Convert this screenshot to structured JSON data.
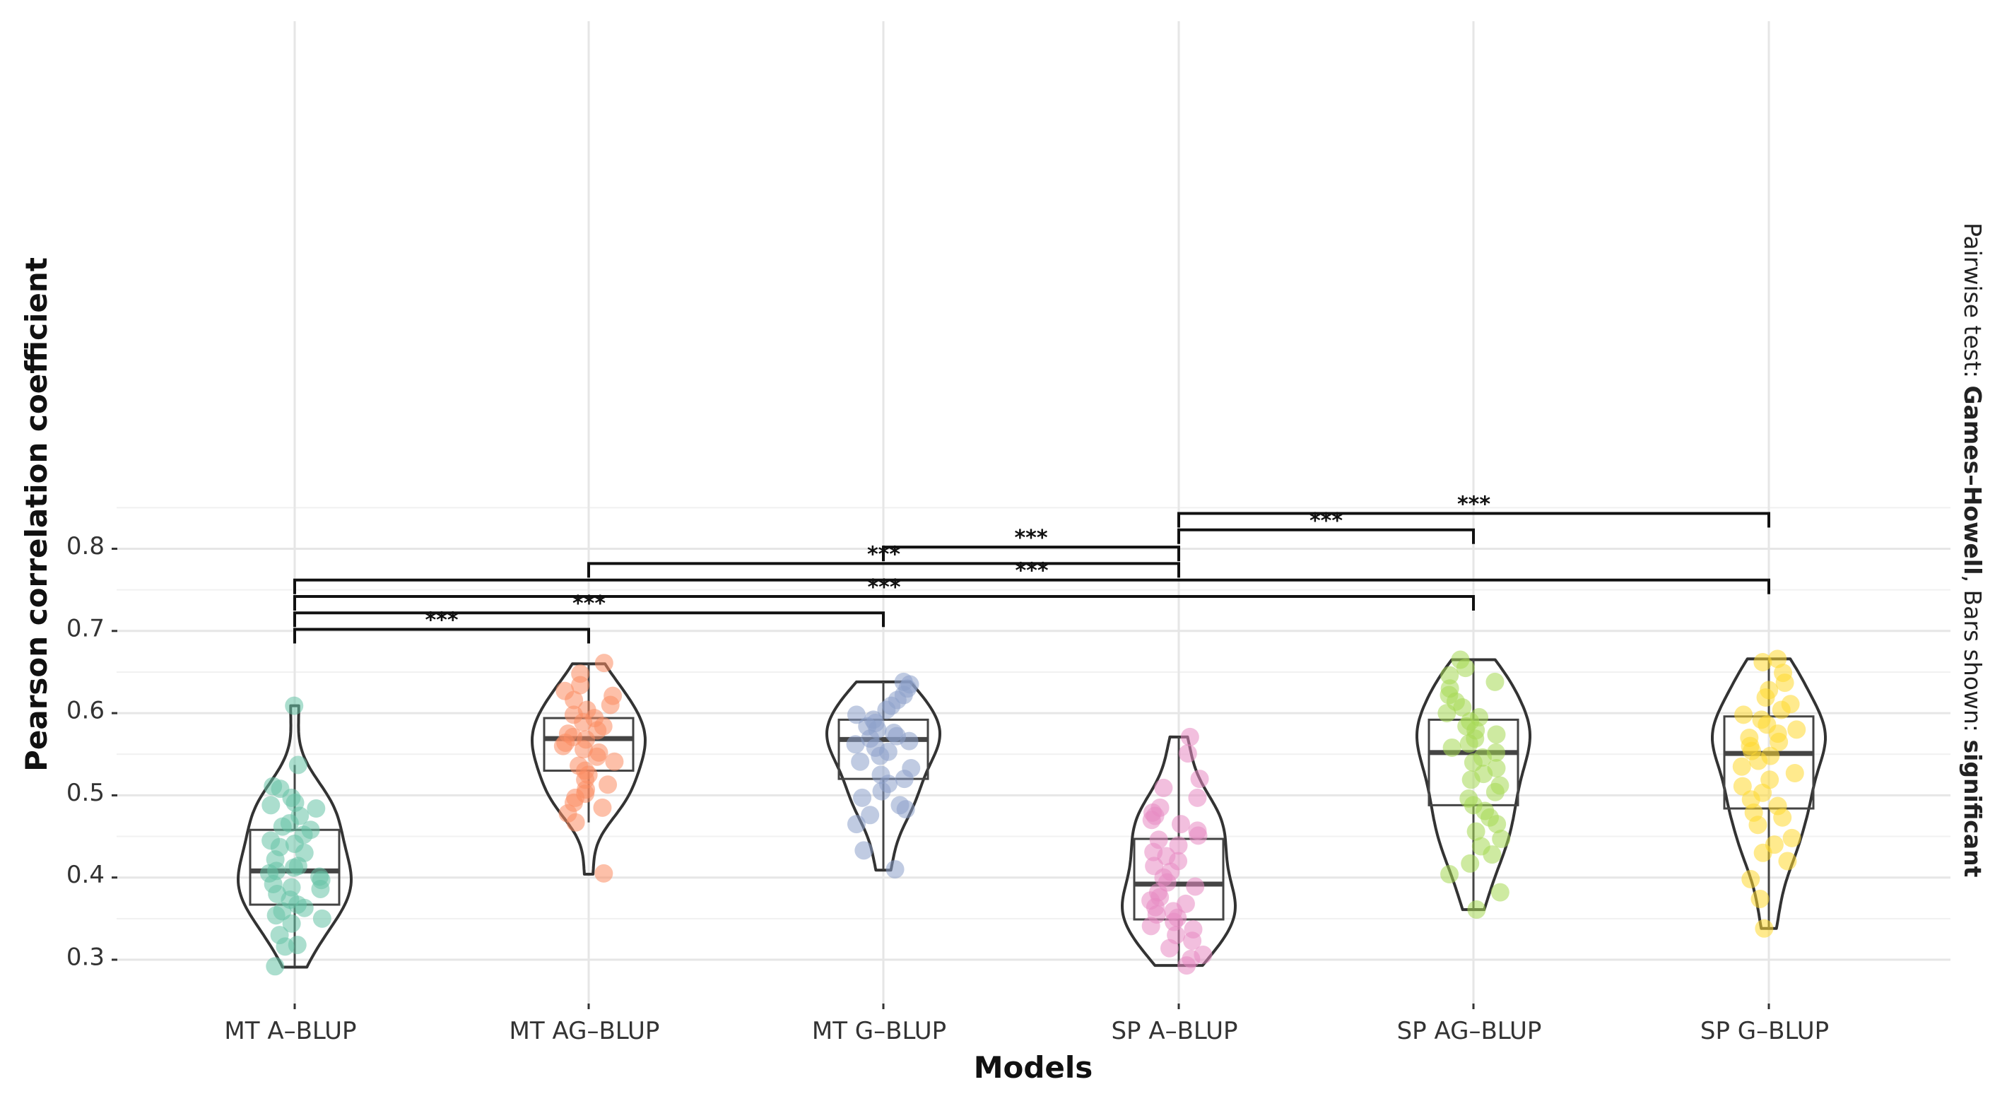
{
  "chart_data": {
    "type": "violin-box-jitter",
    "xlabel": "Models",
    "ylabel": "Pearson correlation coefficient",
    "ylim": [
      0.285,
      0.855
    ],
    "yticks": [
      0.3,
      0.4,
      0.5,
      0.6,
      0.7,
      0.8
    ],
    "ytick_labels": [
      "0.3",
      "0.4",
      "0.5",
      "0.6",
      "0.7",
      "0.8"
    ],
    "grid": true,
    "caption": {
      "prefix": "Pairwise test: ",
      "test": "Games–Howell",
      "middle": ", Bars shown: ",
      "bars": "significant"
    },
    "categories": [
      "MT A–BLUP",
      "MT AG–BLUP",
      "MT G–BLUP",
      "SP A–BLUP",
      "SP AG–BLUP",
      "SP G–BLUP"
    ],
    "colors": [
      "#66c2a5",
      "#fc8d62",
      "#8da0cb",
      "#e78ac3",
      "#a6d854",
      "#ffd92f"
    ],
    "box": [
      {
        "q1": 0.367,
        "median": 0.408,
        "q3": 0.458,
        "whisker_low": 0.292,
        "whisker_high": 0.537
      },
      {
        "q1": 0.53,
        "median": 0.569,
        "q3": 0.594,
        "whisker_low": 0.467,
        "whisker_high": 0.66
      },
      {
        "q1": 0.52,
        "median": 0.568,
        "q3": 0.592,
        "whisker_low": 0.41,
        "whisker_high": 0.638
      },
      {
        "q1": 0.349,
        "median": 0.392,
        "q3": 0.447,
        "whisker_low": 0.293,
        "whisker_high": 0.571
      },
      {
        "q1": 0.488,
        "median": 0.552,
        "q3": 0.592,
        "whisker_low": 0.362,
        "whisker_high": 0.665
      },
      {
        "q1": 0.484,
        "median": 0.551,
        "q3": 0.596,
        "whisker_low": 0.338,
        "whisker_high": 0.666
      }
    ],
    "violin_range": [
      [
        0.291,
        0.609
      ],
      [
        0.404,
        0.66
      ],
      [
        0.409,
        0.638
      ],
      [
        0.293,
        0.571
      ],
      [
        0.361,
        0.665
      ],
      [
        0.338,
        0.666
      ]
    ],
    "points": [
      [
        0.609,
        0.537,
        0.511,
        0.508,
        0.497,
        0.491,
        0.488,
        0.484,
        0.475,
        0.466,
        0.462,
        0.458,
        0.452,
        0.445,
        0.441,
        0.437,
        0.43,
        0.422,
        0.414,
        0.412,
        0.408,
        0.405,
        0.401,
        0.397,
        0.392,
        0.388,
        0.386,
        0.38,
        0.373,
        0.367,
        0.363,
        0.359,
        0.354,
        0.35,
        0.344,
        0.33,
        0.318,
        0.316,
        0.292
      ],
      [
        0.661,
        0.648,
        0.634,
        0.627,
        0.621,
        0.616,
        0.61,
        0.604,
        0.598,
        0.594,
        0.589,
        0.584,
        0.579,
        0.575,
        0.571,
        0.568,
        0.564,
        0.56,
        0.556,
        0.552,
        0.547,
        0.541,
        0.536,
        0.53,
        0.525,
        0.519,
        0.513,
        0.507,
        0.502,
        0.497,
        0.491,
        0.485,
        0.478,
        0.467,
        0.405
      ],
      [
        0.638,
        0.635,
        0.63,
        0.622,
        0.616,
        0.609,
        0.604,
        0.598,
        0.592,
        0.588,
        0.584,
        0.58,
        0.576,
        0.572,
        0.569,
        0.566,
        0.562,
        0.558,
        0.553,
        0.548,
        0.541,
        0.533,
        0.525,
        0.52,
        0.514,
        0.505,
        0.497,
        0.488,
        0.483,
        0.476,
        0.465,
        0.433,
        0.41
      ],
      [
        0.571,
        0.551,
        0.52,
        0.509,
        0.497,
        0.485,
        0.479,
        0.475,
        0.47,
        0.465,
        0.457,
        0.451,
        0.446,
        0.439,
        0.431,
        0.426,
        0.42,
        0.414,
        0.407,
        0.4,
        0.394,
        0.389,
        0.382,
        0.376,
        0.372,
        0.368,
        0.364,
        0.359,
        0.355,
        0.351,
        0.346,
        0.341,
        0.337,
        0.33,
        0.323,
        0.314,
        0.306,
        0.301,
        0.293
      ],
      [
        0.665,
        0.655,
        0.646,
        0.638,
        0.63,
        0.622,
        0.614,
        0.607,
        0.6,
        0.595,
        0.59,
        0.584,
        0.579,
        0.574,
        0.569,
        0.563,
        0.558,
        0.552,
        0.546,
        0.54,
        0.533,
        0.526,
        0.519,
        0.512,
        0.504,
        0.496,
        0.488,
        0.481,
        0.473,
        0.465,
        0.456,
        0.447,
        0.438,
        0.428,
        0.417,
        0.404,
        0.382,
        0.361
      ],
      [
        0.666,
        0.662,
        0.649,
        0.637,
        0.628,
        0.619,
        0.611,
        0.604,
        0.598,
        0.592,
        0.586,
        0.58,
        0.575,
        0.57,
        0.565,
        0.56,
        0.554,
        0.548,
        0.542,
        0.535,
        0.527,
        0.519,
        0.511,
        0.503,
        0.495,
        0.487,
        0.479,
        0.473,
        0.464,
        0.448,
        0.44,
        0.43,
        0.42,
        0.398,
        0.374,
        0.338
      ]
    ],
    "comparisons": [
      {
        "from": 0,
        "to": 1,
        "y": 0.702,
        "label": "***"
      },
      {
        "from": 0,
        "to": 2,
        "y": 0.722,
        "label": "***"
      },
      {
        "from": 0,
        "to": 4,
        "y": 0.742,
        "label": "***"
      },
      {
        "from": 0,
        "to": 5,
        "y": 0.762,
        "label": "***"
      },
      {
        "from": 1,
        "to": 3,
        "y": 0.782,
        "label": "***"
      },
      {
        "from": 2,
        "to": 3,
        "y": 0.802,
        "label": "***"
      },
      {
        "from": 3,
        "to": 4,
        "y": 0.823,
        "label": "***"
      },
      {
        "from": 3,
        "to": 5,
        "y": 0.843,
        "label": "***"
      }
    ]
  }
}
